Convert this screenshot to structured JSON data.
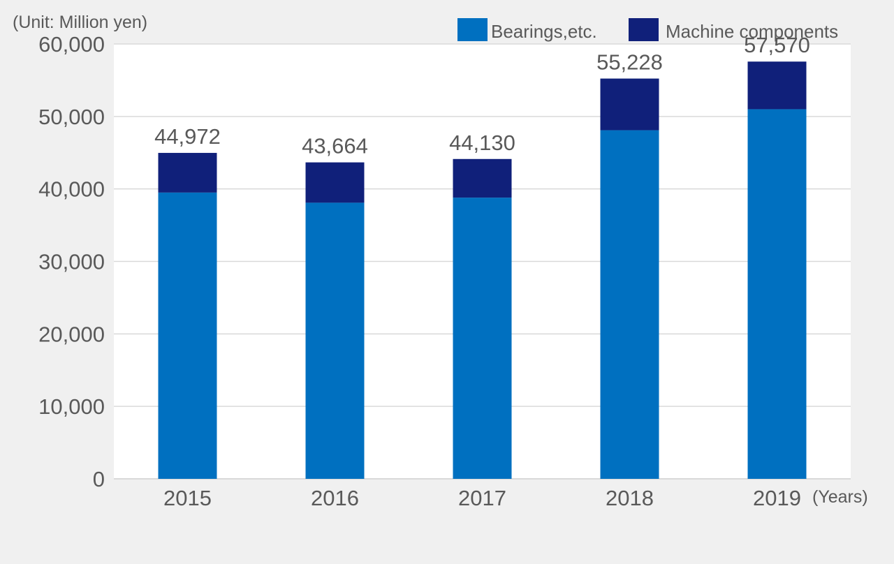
{
  "unit_label": "(Unit: Million yen)",
  "x_unit_label": "(Years)",
  "colors": {
    "bearings": "#0070c0",
    "machine": "#10207a",
    "grid": "#d9d9d9",
    "plot_bg": "#ffffff",
    "page_bg": "#f0f0f0",
    "text": "#595959"
  },
  "chart_data": {
    "type": "bar",
    "stacked": true,
    "categories": [
      "2015",
      "2016",
      "2017",
      "2018",
      "2019"
    ],
    "series": [
      {
        "name": "Bearings,etc.",
        "color": "#0070c0",
        "values": [
          39500,
          38100,
          38800,
          48100,
          51000
        ]
      },
      {
        "name": "Machine components",
        "color": "#10207a",
        "values": [
          5472,
          5564,
          5330,
          7128,
          6570
        ]
      }
    ],
    "totals": [
      44972,
      43664,
      44130,
      55228,
      57570
    ],
    "total_labels": [
      "44,972",
      "43,664",
      "44,130",
      "55,228",
      "57,570"
    ],
    "ylim": [
      0,
      60000
    ],
    "yticks": [
      0,
      10000,
      20000,
      30000,
      40000,
      50000,
      60000
    ],
    "ytick_labels": [
      "0",
      "10,000",
      "20,000",
      "30,000",
      "40,000",
      "50,000",
      "60,000"
    ],
    "grid": true,
    "legend_position": "top-right"
  }
}
